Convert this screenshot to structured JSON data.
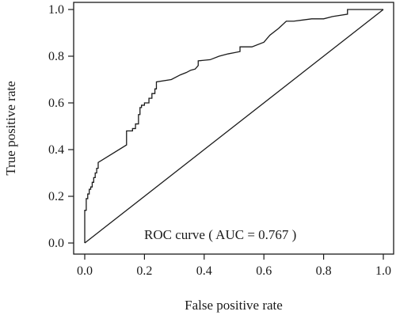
{
  "chart_data": {
    "type": "line",
    "xlabel": "False positive rate",
    "ylabel": "True positive rate",
    "xlim": [
      0,
      1.0
    ],
    "ylim": [
      0,
      1.0
    ],
    "x_ticks": [
      "0.0",
      "0.2",
      "0.4",
      "0.6",
      "0.8",
      "1.0"
    ],
    "y_ticks": [
      "0.0",
      "0.2",
      "0.4",
      "0.6",
      "0.8",
      "1.0"
    ],
    "annotation": "ROC curve ( AUC = 0.767 )",
    "grid": false,
    "legend": "none",
    "series": [
      {
        "x": [
          0.0,
          0.0,
          0.005,
          0.005,
          0.01,
          0.01,
          0.015,
          0.015,
          0.02,
          0.02,
          0.025,
          0.025,
          0.03,
          0.03,
          0.035,
          0.035,
          0.04,
          0.04,
          0.045,
          0.045,
          0.14,
          0.14,
          0.16,
          0.16,
          0.17,
          0.17,
          0.18,
          0.18,
          0.185,
          0.185,
          0.19,
          0.19,
          0.2,
          0.2,
          0.215,
          0.215,
          0.225,
          0.225,
          0.235,
          0.235,
          0.24,
          0.24,
          0.29,
          0.32,
          0.34,
          0.355,
          0.37,
          0.38,
          0.38,
          0.42,
          0.45,
          0.48,
          0.5,
          0.52,
          0.52,
          0.56,
          0.6,
          0.62,
          0.65,
          0.675,
          0.7,
          0.76,
          0.8,
          0.83,
          0.88,
          0.88,
          1.0
        ],
        "y": [
          0.0,
          0.14,
          0.14,
          0.19,
          0.19,
          0.21,
          0.21,
          0.23,
          0.23,
          0.24,
          0.24,
          0.26,
          0.26,
          0.28,
          0.28,
          0.3,
          0.3,
          0.32,
          0.32,
          0.345,
          0.42,
          0.48,
          0.48,
          0.49,
          0.49,
          0.51,
          0.51,
          0.55,
          0.55,
          0.58,
          0.58,
          0.59,
          0.59,
          0.6,
          0.6,
          0.62,
          0.62,
          0.64,
          0.64,
          0.66,
          0.66,
          0.69,
          0.7,
          0.72,
          0.73,
          0.74,
          0.745,
          0.76,
          0.78,
          0.785,
          0.8,
          0.81,
          0.815,
          0.82,
          0.84,
          0.84,
          0.86,
          0.89,
          0.92,
          0.95,
          0.95,
          0.96,
          0.96,
          0.97,
          0.98,
          1.0,
          1.0
        ]
      },
      {
        "x": [
          0.0,
          1.0
        ],
        "y": [
          0.0,
          1.0
        ]
      }
    ]
  }
}
